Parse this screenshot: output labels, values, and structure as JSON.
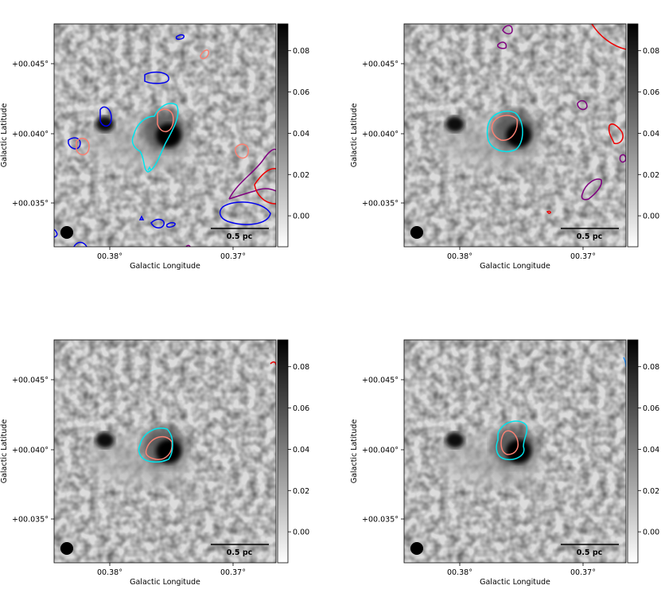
{
  "chart_data": {
    "type": "heatmap",
    "colormap": "gray_r",
    "xlabel": "Galactic Longitude",
    "ylabel": "Galactic Latitude",
    "x_ticks": [
      "00.38°",
      "00.37°"
    ],
    "y_ticks": [
      "+00.045°",
      "+00.040°",
      "+00.035°"
    ],
    "colorbar_ticks": [
      "0.08",
      "0.06",
      "0.04",
      "0.02",
      "0.00"
    ],
    "colorbar_range": [
      -0.015,
      0.093
    ],
    "scalebar_label": "0.5 pc",
    "beam_marker": "filled circle",
    "panels": [
      {
        "name": "top-left",
        "show_ylabel": true,
        "contour_colors": [
          "#0000ee",
          "#fa8072",
          "#00e5ee",
          "#800080",
          "#ee0000"
        ]
      },
      {
        "name": "top-right",
        "show_ylabel": true,
        "contour_colors": [
          "#00e5ee",
          "#fa8072",
          "#800080",
          "#ee0000"
        ]
      },
      {
        "name": "bottom-left",
        "show_ylabel": true,
        "contour_colors": [
          "#00e5ee",
          "#fa8072",
          "#ee0000"
        ]
      },
      {
        "name": "bottom-right",
        "show_ylabel": true,
        "contour_colors": [
          "#00e5ee",
          "#fa8072",
          "#1e90ff"
        ]
      }
    ]
  }
}
